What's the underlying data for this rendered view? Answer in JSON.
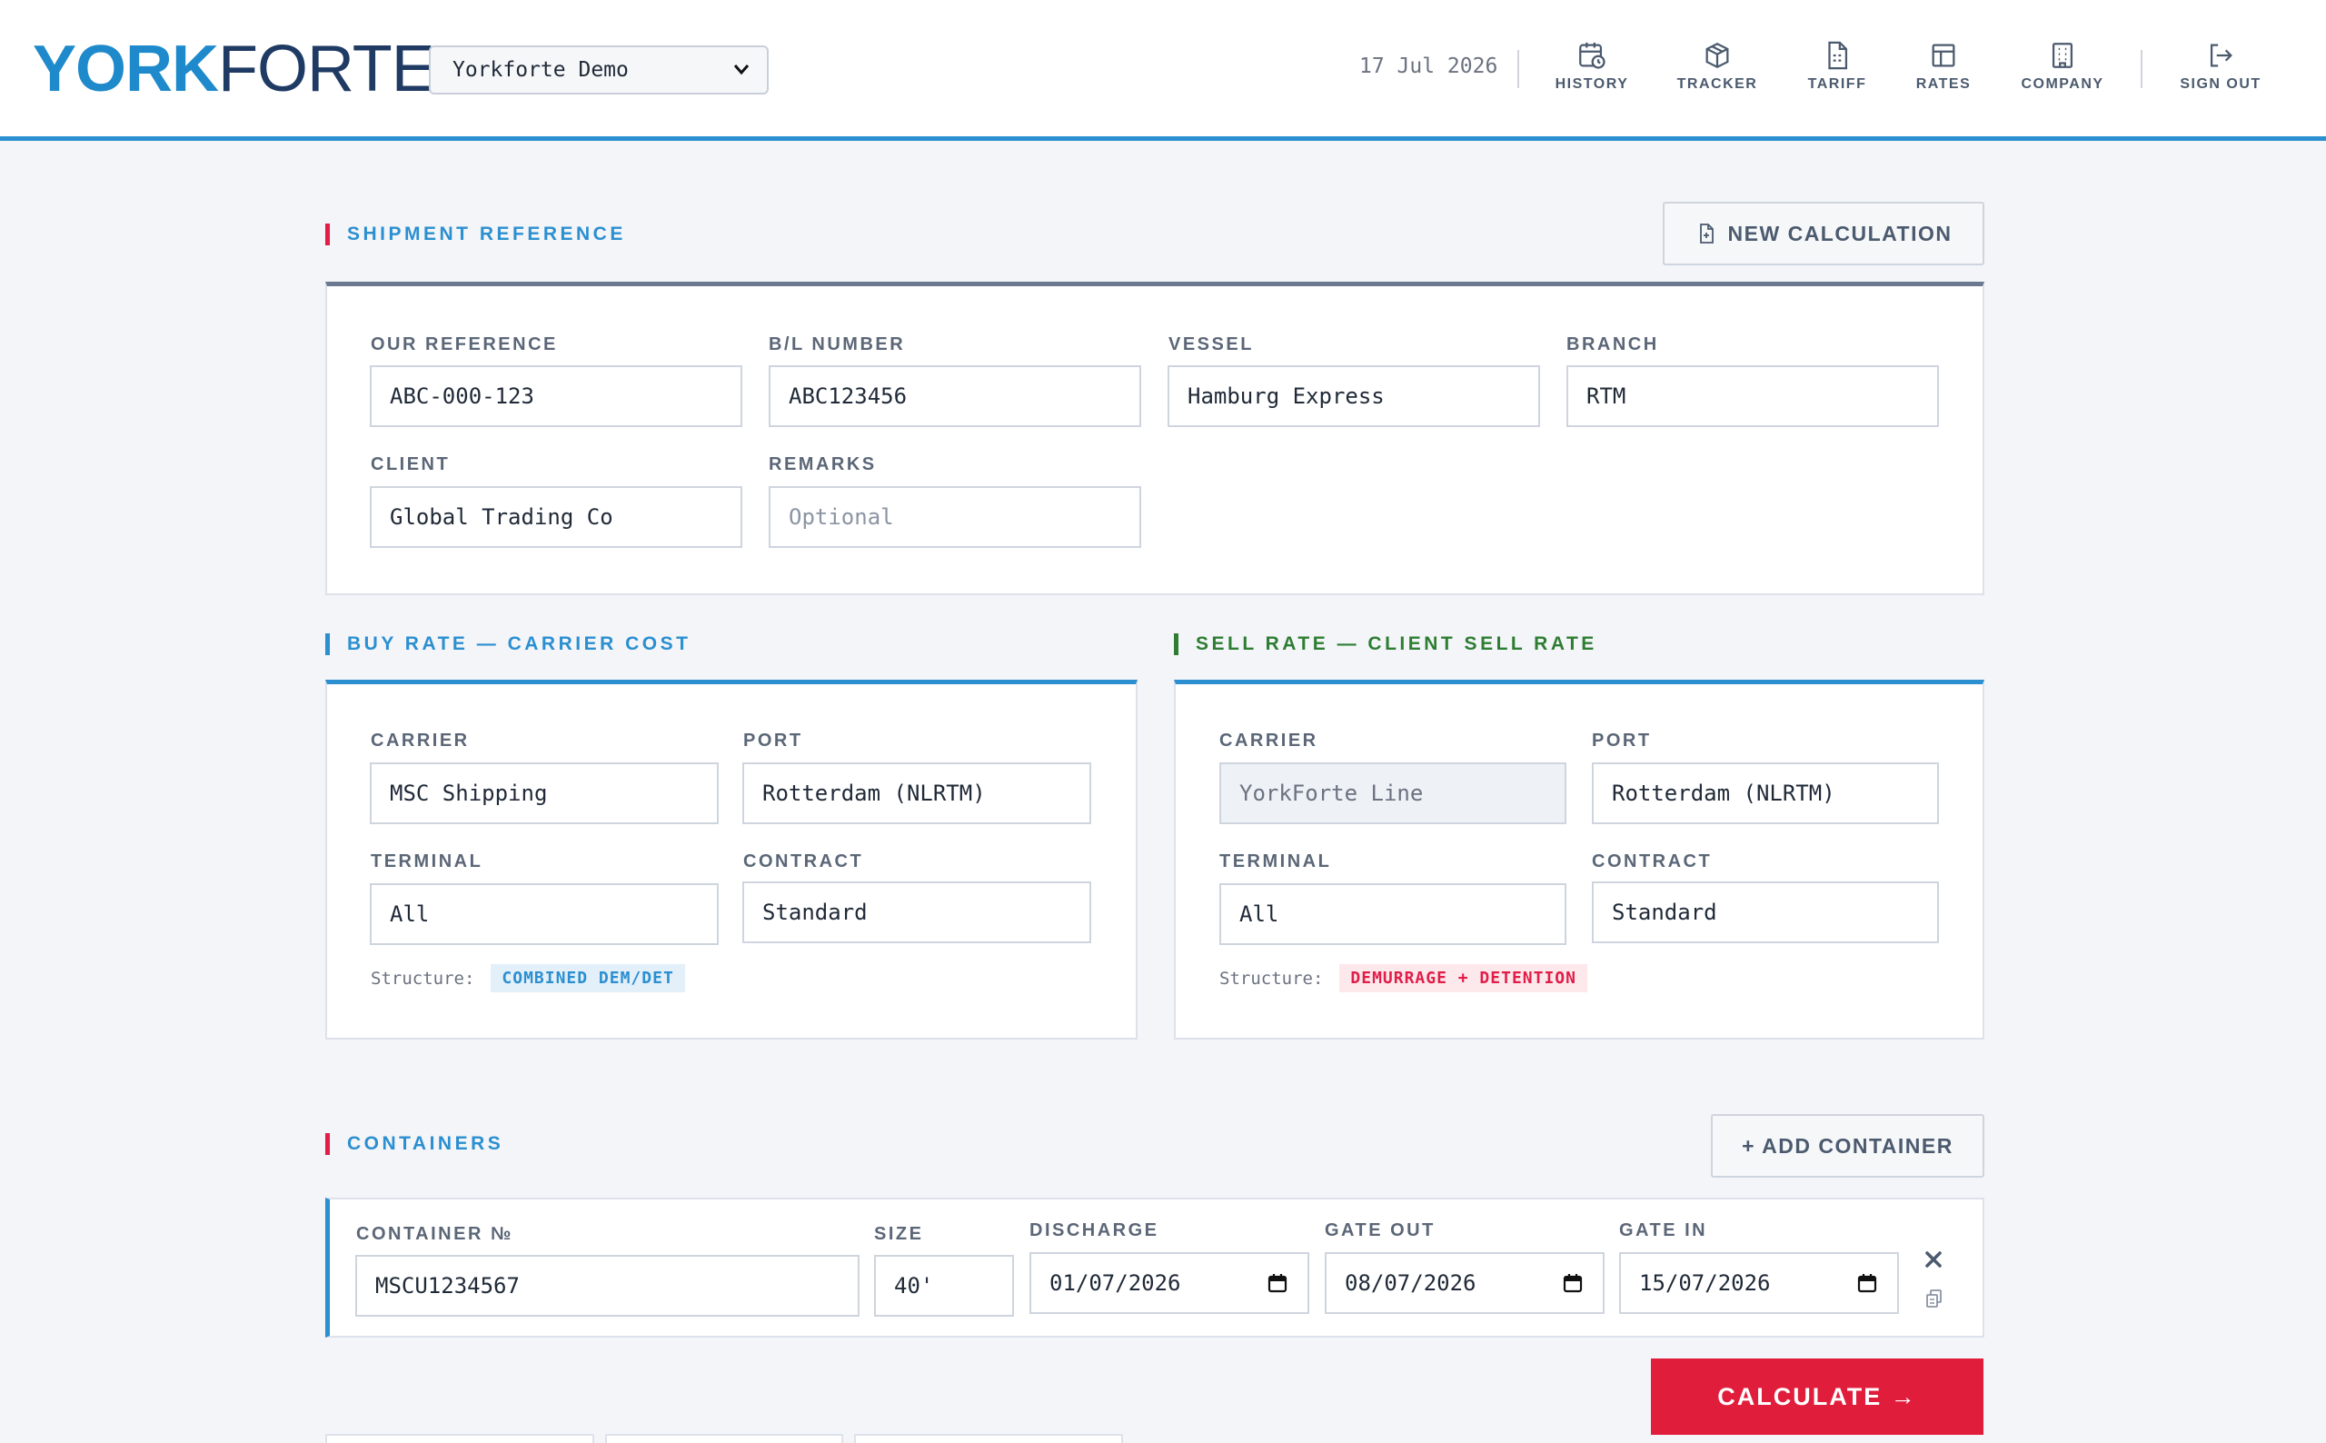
{
  "header": {
    "logo_bold": "YORK",
    "logo_light": "FORTE",
    "company_select": "Yorkforte Demo",
    "date": "17 Jul 2026",
    "nav": {
      "history": "HISTORY",
      "tracker": "TRACKER",
      "tariff": "TARIFF",
      "rates": "RATES",
      "company": "COMPANY",
      "sign_out": "SIGN OUT"
    }
  },
  "shipment": {
    "title": "SHIPMENT REFERENCE",
    "new_calc": "NEW CALCULATION",
    "our_reference": {
      "label": "OUR REFERENCE",
      "value": "ABC-000-123"
    },
    "bl_number": {
      "label": "B/L NUMBER",
      "value": "ABC123456"
    },
    "vessel": {
      "label": "VESSEL",
      "value": "Hamburg Express"
    },
    "branch": {
      "label": "BRANCH",
      "value": "RTM"
    },
    "client": {
      "label": "CLIENT",
      "value": "Global Trading Co"
    },
    "remarks": {
      "label": "REMARKS",
      "placeholder": "Optional"
    }
  },
  "buy": {
    "title": "BUY RATE — CARRIER COST",
    "carrier": {
      "label": "CARRIER",
      "value": "MSC Shipping"
    },
    "port": {
      "label": "PORT",
      "value": "Rotterdam (NLRTM)"
    },
    "terminal": {
      "label": "TERMINAL",
      "value": "All"
    },
    "contract": {
      "label": "CONTRACT",
      "value": "Standard"
    },
    "structure_label": "Structure:",
    "structure_badge": "COMBINED DEM/DET"
  },
  "sell": {
    "title": "SELL RATE — CLIENT SELL RATE",
    "carrier": {
      "label": "CARRIER",
      "value": "YorkForte Line"
    },
    "port": {
      "label": "PORT",
      "value": "Rotterdam (NLRTM)"
    },
    "terminal": {
      "label": "TERMINAL",
      "value": "All"
    },
    "contract": {
      "label": "CONTRACT",
      "value": "Standard"
    },
    "structure_label": "Structure:",
    "structure_badge": "DEMURRAGE + DETENTION"
  },
  "containers": {
    "title": "CONTAINERS",
    "add": "+ ADD CONTAINER",
    "rows": [
      {
        "number": {
          "label": "CONTAINER №",
          "value": "MSCU1234567"
        },
        "size": {
          "label": "SIZE",
          "value": "40'"
        },
        "discharge": {
          "label": "DISCHARGE",
          "value": "01/07/2026"
        },
        "gate_out": {
          "label": "GATE OUT",
          "value": "08/07/2026"
        },
        "gate_in": {
          "label": "GATE IN",
          "value": "15/07/2026"
        }
      }
    ]
  },
  "calculate": "CALCULATE →",
  "colors": {
    "accent_blue": "#2b8fd0",
    "accent_red": "#e11d3c",
    "accent_green": "#2e7d32",
    "navy": "#1f3a63"
  }
}
